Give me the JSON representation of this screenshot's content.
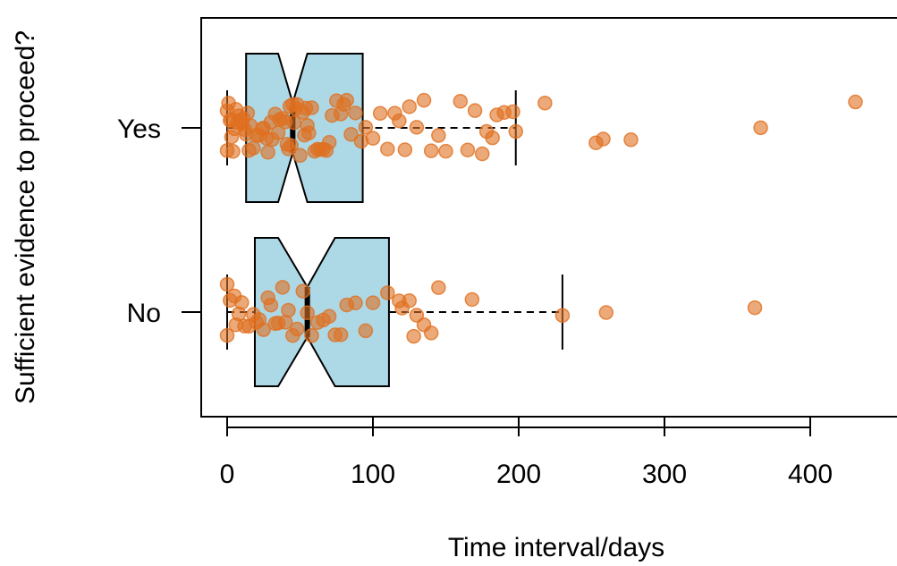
{
  "chart_data": {
    "type": "boxplot",
    "orientation": "horizontal",
    "notched": true,
    "xlabel": "Time interval/days",
    "ylabel": "Sufficient evidence to proceed?",
    "categories": [
      "No",
      "Yes"
    ],
    "x_ticks": [
      0,
      100,
      200,
      300,
      400
    ],
    "xlim": [
      -15,
      460
    ],
    "box_color": "#add8e6",
    "point_color": "#e07020",
    "boxes": [
      {
        "name": "No",
        "whisker_low": 0,
        "q1": 19,
        "median": 55,
        "q3": 111,
        "whisker_high": 230,
        "notch_low": 35,
        "notch_high": 74
      },
      {
        "name": "Yes",
        "whisker_low": 0,
        "q1": 13,
        "median": 45,
        "q3": 93,
        "whisker_high": 198,
        "notch_low": 35,
        "notch_high": 55
      }
    ],
    "points": [
      {
        "group": "No",
        "values": [
          0,
          0,
          2,
          5,
          6,
          8,
          10,
          12,
          15,
          18,
          20,
          22,
          25,
          28,
          30,
          33,
          35,
          38,
          40,
          42,
          45,
          48,
          52,
          55,
          58,
          62,
          66,
          70,
          74,
          78,
          82,
          88,
          95,
          100,
          110,
          118,
          120,
          125,
          128,
          130,
          135,
          140,
          145,
          168,
          230,
          260,
          362
        ]
      },
      {
        "group": "Yes",
        "values": [
          0,
          0,
          1,
          2,
          3,
          3,
          4,
          5,
          6,
          7,
          8,
          9,
          10,
          11,
          12,
          13,
          14,
          15,
          16,
          18,
          20,
          22,
          24,
          25,
          27,
          28,
          30,
          31,
          33,
          35,
          36,
          38,
          40,
          41,
          42,
          43,
          44,
          45,
          46,
          47,
          48,
          50,
          52,
          53,
          54,
          55,
          56,
          58,
          60,
          62,
          64,
          66,
          68,
          70,
          72,
          75,
          78,
          80,
          82,
          85,
          88,
          92,
          95,
          100,
          105,
          110,
          115,
          118,
          122,
          125,
          130,
          135,
          140,
          145,
          150,
          160,
          165,
          170,
          175,
          178,
          182,
          185,
          190,
          196,
          198,
          218,
          253,
          258,
          277,
          366,
          431
        ]
      }
    ]
  }
}
